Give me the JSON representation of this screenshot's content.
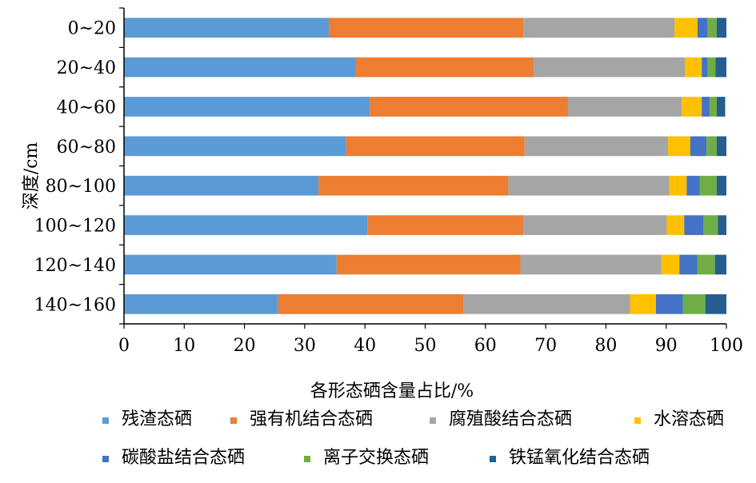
{
  "chart_data": {
    "type": "bar",
    "orientation": "horizontal",
    "stacked": true,
    "categories": [
      "0~20",
      "20~40",
      "40~60",
      "60~80",
      "80~100",
      "100~120",
      "120~140",
      "140~160"
    ],
    "series": [
      {
        "name": "残渣态硒",
        "color": "#5B9BD5",
        "values": [
          34.0,
          38.5,
          40.8,
          36.9,
          32.3,
          40.4,
          35.3,
          25.6
        ]
      },
      {
        "name": "强有机结合态硒",
        "color": "#ED7D31",
        "values": [
          32.3,
          29.5,
          32.9,
          29.6,
          31.5,
          25.9,
          30.5,
          30.8
        ]
      },
      {
        "name": "腐殖酸结合态硒",
        "color": "#A5A5A5",
        "values": [
          25.1,
          25.1,
          18.9,
          23.8,
          26.7,
          23.8,
          23.4,
          27.6
        ]
      },
      {
        "name": "水溶态硒",
        "color": "#FFC000",
        "values": [
          3.8,
          2.8,
          3.3,
          3.7,
          2.9,
          2.9,
          3.0,
          4.3
        ]
      },
      {
        "name": "碳酸盐结合态硒",
        "color": "#4472C4",
        "values": [
          1.7,
          1.0,
          1.3,
          2.7,
          2.2,
          3.2,
          3.0,
          4.5
        ]
      },
      {
        "name": "离子交换态硒",
        "color": "#70AD47",
        "values": [
          1.5,
          1.3,
          1.2,
          1.7,
          2.8,
          2.4,
          2.9,
          3.7
        ]
      },
      {
        "name": "铁锰氧化结合态硒",
        "color": "#255E91",
        "values": [
          1.6,
          1.8,
          1.4,
          1.6,
          1.6,
          1.4,
          1.9,
          3.5
        ]
      }
    ],
    "xlabel": "各形态硒含量占比/%",
    "ylabel": "深度/cm",
    "xlim": [
      0,
      100
    ],
    "xticks": [
      0,
      10,
      20,
      30,
      40,
      50,
      60,
      70,
      80,
      90,
      100
    ],
    "grid": false,
    "legend_position": "bottom"
  }
}
